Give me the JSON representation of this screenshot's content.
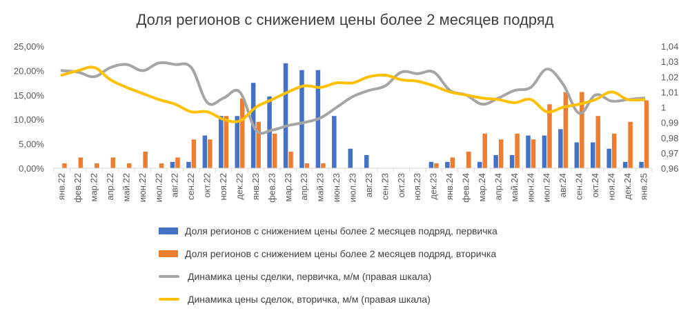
{
  "chart_data": {
    "type": "bar+line",
    "title": "Доля регионов с снижением цены более 2 месяцев подряд",
    "categories": [
      "янв.22",
      "фев.22",
      "мар.22",
      "апр.22",
      "май.22",
      "июн.22",
      "июл.22",
      "авг.22",
      "сен.22",
      "окт.22",
      "ноя.22",
      "дек.22",
      "янв.23",
      "фев.23",
      "мар.23",
      "апр.23",
      "май.23",
      "июн.23",
      "июл.23",
      "авг.23",
      "сен.23",
      "окт.23",
      "ноя.23",
      "дек.23",
      "янв.24",
      "фев.24",
      "мар.24",
      "апр.24",
      "май.24",
      "июн.24",
      "июл.24",
      "авг.24",
      "сен.24",
      "окт.24",
      "ноя.24",
      "дек.24",
      "янв.25"
    ],
    "left_axis": {
      "ylim": [
        0,
        0.25
      ],
      "ticks": [
        "0,00%",
        "5,00%",
        "10,00%",
        "15,00%",
        "20,00%",
        "25,00%"
      ]
    },
    "right_axis": {
      "ylim": [
        0.96,
        1.04
      ],
      "ticks": [
        "0,96",
        "0,97",
        "0,98",
        "0,99",
        "1",
        "1,01",
        "1,02",
        "1,03",
        "1,04"
      ]
    },
    "series": [
      {
        "name": "Доля регионов с снижением цены более 2 месяцев подряд, первичка",
        "type": "bar",
        "axis": "left",
        "color": "#4472C4",
        "values": [
          0,
          0,
          0,
          0,
          0,
          0,
          0,
          0.013,
          0.013,
          0.067,
          0.107,
          0.107,
          0.175,
          0.147,
          0.215,
          0.201,
          0.201,
          0.107,
          0.04,
          0.027,
          0,
          0,
          0,
          0.013,
          0.013,
          0,
          0.013,
          0.027,
          0.027,
          0.067,
          0.067,
          0.08,
          0.053,
          0.053,
          0.04,
          0.013,
          0.013
        ]
      },
      {
        "name": "Доля регионов с снижением цены более 2 месяцев подряд, вторичка",
        "type": "bar",
        "axis": "left",
        "color": "#ED7D31",
        "values": [
          0.01,
          0.022,
          0.01,
          0.022,
          0.01,
          0.034,
          0.01,
          0.022,
          0.059,
          0.059,
          0.107,
          0.143,
          0.095,
          0.071,
          0.034,
          0.01,
          0.01,
          0,
          0,
          0,
          0,
          0,
          0,
          0.01,
          0.022,
          0.034,
          0.071,
          0.059,
          0.071,
          0.059,
          0.131,
          0.156,
          0.156,
          0.107,
          0.071,
          0.095,
          0.139
        ]
      },
      {
        "name": "Динамика цены сделки, первичка, м/м (правая шкала)",
        "type": "line",
        "axis": "right",
        "color": "#A5A5A5",
        "values": [
          1.024,
          1.023,
          1.02,
          1.026,
          1.028,
          1.024,
          1.029,
          1.028,
          1.026,
          1.003,
          1.006,
          1.01,
          0.985,
          0.985,
          0.988,
          0.99,
          0.993,
          1.0,
          1.007,
          1.011,
          1.014,
          1.023,
          1.022,
          1.023,
          1.011,
          1.008,
          1.002,
          1.006,
          1.011,
          1.013,
          1.025,
          1.015,
          0.996,
          1.008,
          1.004,
          1.005,
          1.006
        ]
      },
      {
        "name": "Динамика цены сделок, вторичка, м/м (правая шкала)",
        "type": "line",
        "axis": "right",
        "color": "#FFC000",
        "values": [
          1.021,
          1.024,
          1.026,
          1.018,
          1.013,
          1.009,
          1.005,
          1.002,
          0.997,
          0.997,
          0.992,
          0.991,
          1.0,
          1.005,
          1.01,
          1.014,
          1.013,
          1.016,
          1.016,
          1.02,
          1.021,
          1.018,
          1.017,
          1.014,
          1.01,
          1.008,
          1.006,
          1.005,
          1.003,
          1.005,
          0.997,
          1.0,
          1.002,
          1.005,
          1.01,
          1.005,
          1.005
        ]
      }
    ],
    "legend_position": "bottom",
    "grid": false
  }
}
